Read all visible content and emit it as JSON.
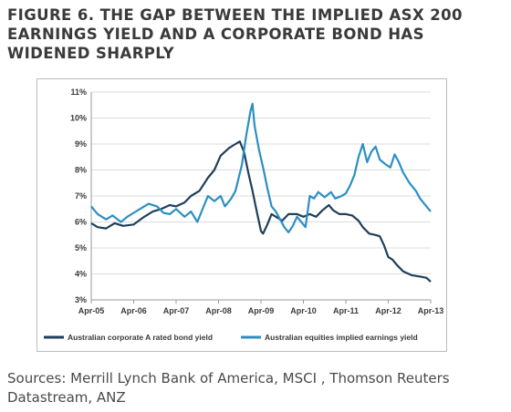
{
  "title": "FIGURE 6. THE GAP BETWEEN THE IMPLIED ASX 200 EARNINGS YIELD AND A CORPORATE BOND HAS WIDENED SHARPLY",
  "source": "Sources: Merrill Lynch Bank of America, MSCI , Thomson Reuters Datastream, ANZ",
  "chart_data": {
    "type": "line",
    "title": "",
    "xlabel": "",
    "ylabel": "",
    "xlim": [
      2005.25,
      2013.25
    ],
    "ylim": [
      3,
      11
    ],
    "y_ticks": [
      "3%",
      "4%",
      "5%",
      "6%",
      "7%",
      "8%",
      "9%",
      "10%",
      "11%"
    ],
    "x_ticks": [
      {
        "label": "Apr-05",
        "x": 2005.25
      },
      {
        "label": "Apr-06",
        "x": 2006.25
      },
      {
        "label": "Apr-07",
        "x": 2007.25
      },
      {
        "label": "Apr-08",
        "x": 2008.25
      },
      {
        "label": "Apr-09",
        "x": 2009.25
      },
      {
        "label": "Apr-10",
        "x": 2010.25
      },
      {
        "label": "Apr-11",
        "x": 2011.25
      },
      {
        "label": "Apr-12",
        "x": 2012.25
      },
      {
        "label": "Apr-13",
        "x": 2013.25
      }
    ],
    "grid": "horizontal",
    "legend_position": "bottom",
    "series": [
      {
        "name": "Australian corporate A rated bond yield",
        "color": "#1f3f5b",
        "points": [
          [
            2005.25,
            5.95
          ],
          [
            2005.4,
            5.8
          ],
          [
            2005.6,
            5.75
          ],
          [
            2005.8,
            5.95
          ],
          [
            2006.0,
            5.85
          ],
          [
            2006.25,
            5.9
          ],
          [
            2006.5,
            6.2
          ],
          [
            2006.7,
            6.4
          ],
          [
            2006.9,
            6.5
          ],
          [
            2007.1,
            6.65
          ],
          [
            2007.25,
            6.6
          ],
          [
            2007.45,
            6.75
          ],
          [
            2007.6,
            7.0
          ],
          [
            2007.8,
            7.2
          ],
          [
            2008.0,
            7.7
          ],
          [
            2008.15,
            8.0
          ],
          [
            2008.3,
            8.55
          ],
          [
            2008.5,
            8.85
          ],
          [
            2008.65,
            9.0
          ],
          [
            2008.75,
            9.1
          ],
          [
            2008.85,
            8.7
          ],
          [
            2008.95,
            7.9
          ],
          [
            2009.05,
            7.2
          ],
          [
            2009.15,
            6.4
          ],
          [
            2009.25,
            5.65
          ],
          [
            2009.3,
            5.55
          ],
          [
            2009.4,
            5.9
          ],
          [
            2009.5,
            6.3
          ],
          [
            2009.6,
            6.2
          ],
          [
            2009.75,
            6.05
          ],
          [
            2009.9,
            6.3
          ],
          [
            2010.1,
            6.3
          ],
          [
            2010.25,
            6.2
          ],
          [
            2010.4,
            6.3
          ],
          [
            2010.55,
            6.2
          ],
          [
            2010.7,
            6.45
          ],
          [
            2010.85,
            6.65
          ],
          [
            2010.95,
            6.45
          ],
          [
            2011.1,
            6.3
          ],
          [
            2011.25,
            6.3
          ],
          [
            2011.4,
            6.25
          ],
          [
            2011.55,
            6.05
          ],
          [
            2011.65,
            5.8
          ],
          [
            2011.8,
            5.55
          ],
          [
            2011.95,
            5.5
          ],
          [
            2012.05,
            5.45
          ],
          [
            2012.15,
            5.1
          ],
          [
            2012.25,
            4.65
          ],
          [
            2012.35,
            4.55
          ],
          [
            2012.45,
            4.35
          ],
          [
            2012.6,
            4.1
          ],
          [
            2012.8,
            3.95
          ],
          [
            2013.0,
            3.9
          ],
          [
            2013.15,
            3.85
          ],
          [
            2013.25,
            3.7
          ]
        ]
      },
      {
        "name": "Australian equities implied earnings yield",
        "color": "#2b8fc2",
        "points": [
          [
            2005.25,
            6.6
          ],
          [
            2005.4,
            6.3
          ],
          [
            2005.6,
            6.1
          ],
          [
            2005.75,
            6.25
          ],
          [
            2005.95,
            6.0
          ],
          [
            2006.1,
            6.2
          ],
          [
            2006.25,
            6.35
          ],
          [
            2006.45,
            6.55
          ],
          [
            2006.6,
            6.7
          ],
          [
            2006.8,
            6.6
          ],
          [
            2006.95,
            6.35
          ],
          [
            2007.1,
            6.3
          ],
          [
            2007.25,
            6.5
          ],
          [
            2007.45,
            6.2
          ],
          [
            2007.6,
            6.4
          ],
          [
            2007.75,
            6.0
          ],
          [
            2007.9,
            6.6
          ],
          [
            2008.0,
            7.0
          ],
          [
            2008.15,
            6.8
          ],
          [
            2008.3,
            7.0
          ],
          [
            2008.4,
            6.6
          ],
          [
            2008.55,
            6.9
          ],
          [
            2008.65,
            7.2
          ],
          [
            2008.8,
            8.2
          ],
          [
            2008.9,
            9.3
          ],
          [
            2009.0,
            10.25
          ],
          [
            2009.05,
            10.55
          ],
          [
            2009.1,
            9.7
          ],
          [
            2009.2,
            8.8
          ],
          [
            2009.3,
            8.1
          ],
          [
            2009.4,
            7.3
          ],
          [
            2009.5,
            6.6
          ],
          [
            2009.6,
            6.4
          ],
          [
            2009.7,
            6.1
          ],
          [
            2009.8,
            5.8
          ],
          [
            2009.9,
            5.6
          ],
          [
            2010.0,
            5.85
          ],
          [
            2010.1,
            6.2
          ],
          [
            2010.2,
            6.0
          ],
          [
            2010.3,
            5.8
          ],
          [
            2010.4,
            7.0
          ],
          [
            2010.5,
            6.9
          ],
          [
            2010.6,
            7.15
          ],
          [
            2010.75,
            6.95
          ],
          [
            2010.9,
            7.15
          ],
          [
            2011.0,
            6.9
          ],
          [
            2011.15,
            7.0
          ],
          [
            2011.25,
            7.1
          ],
          [
            2011.35,
            7.4
          ],
          [
            2011.45,
            7.8
          ],
          [
            2011.55,
            8.5
          ],
          [
            2011.65,
            9.0
          ],
          [
            2011.75,
            8.3
          ],
          [
            2011.85,
            8.7
          ],
          [
            2011.95,
            8.9
          ],
          [
            2012.05,
            8.4
          ],
          [
            2012.2,
            8.2
          ],
          [
            2012.3,
            8.1
          ],
          [
            2012.4,
            8.6
          ],
          [
            2012.5,
            8.3
          ],
          [
            2012.6,
            7.9
          ],
          [
            2012.75,
            7.5
          ],
          [
            2012.9,
            7.2
          ],
          [
            2013.0,
            6.9
          ],
          [
            2013.1,
            6.7
          ],
          [
            2013.2,
            6.5
          ],
          [
            2013.25,
            6.4
          ]
        ]
      }
    ]
  }
}
